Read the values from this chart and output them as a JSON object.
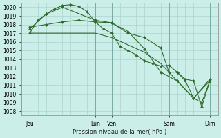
{
  "title": "Pression niveau de la mer( hPa )",
  "background_color": "#cceee8",
  "grid_color": "#aad4ce",
  "line_color": "#2d6a2d",
  "xlim": [
    0,
    144
  ],
  "ylim": [
    1007.5,
    1020.5
  ],
  "ytick_values": [
    1008,
    1009,
    1010,
    1011,
    1012,
    1013,
    1014,
    1015,
    1016,
    1017,
    1018,
    1019,
    1020
  ],
  "xtick_positions": [
    6,
    54,
    66,
    108,
    138
  ],
  "xtick_labels": [
    "Jeu",
    "Lun",
    "Ven",
    "Sam",
    "Dim"
  ],
  "vline_positions": [
    6,
    54,
    66,
    108,
    138
  ],
  "series": [
    {
      "x": [
        6,
        12,
        18,
        24,
        30,
        36,
        42,
        48,
        54,
        60,
        66,
        72,
        78,
        84,
        90,
        96,
        102,
        108,
        114,
        120,
        126,
        132,
        138
      ],
      "y": [
        1017.0,
        1018.5,
        1019.2,
        1019.8,
        1020.2,
        1020.3,
        1020.1,
        1019.5,
        1018.3,
        1017.5,
        1017.0,
        1015.5,
        1015.0,
        1014.5,
        1013.8,
        1013.5,
        1013.2,
        1013.3,
        1012.5,
        1011.5,
        1009.5,
        1009.0,
        1011.5
      ],
      "marker": "D",
      "markersize": 2.0
    },
    {
      "x": [
        6,
        18,
        30,
        54,
        66,
        78,
        90,
        102,
        108,
        114,
        120,
        126,
        132,
        138
      ],
      "y": [
        1017.5,
        1019.2,
        1020.0,
        1018.5,
        1018.2,
        1017.0,
        1016.5,
        1015.3,
        1012.5,
        1012.5,
        1011.7,
        1011.5,
        1008.5,
        1011.5
      ],
      "marker": "D",
      "markersize": 2.0
    },
    {
      "x": [
        6,
        18,
        30,
        42,
        54,
        66,
        78,
        90,
        102,
        114,
        126,
        138
      ],
      "y": [
        1017.7,
        1018.0,
        1018.3,
        1018.5,
        1018.3,
        1018.2,
        1017.2,
        1015.2,
        1012.5,
        1011.5,
        1009.5,
        1011.7
      ],
      "marker": "D",
      "markersize": 2.0
    },
    {
      "x": [
        6,
        54,
        66,
        90,
        102,
        114,
        126,
        138
      ],
      "y": [
        1017.0,
        1017.0,
        1016.5,
        1014.8,
        1013.5,
        1011.5,
        1009.5,
        1011.5
      ],
      "marker": null,
      "markersize": 0
    }
  ],
  "title_fontsize": 6,
  "tick_fontsize": 5.5
}
